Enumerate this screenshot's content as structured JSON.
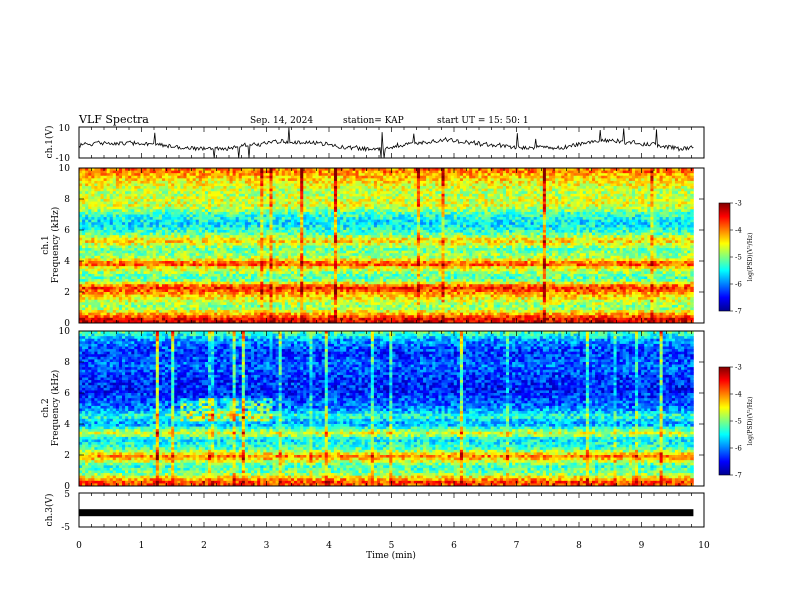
{
  "header": {
    "title": "VLF Spectra",
    "date": "Sep. 14, 2024",
    "station": "station= KAP",
    "start": "start  UT =   15: 50: 1"
  },
  "chart_data": [
    {
      "type": "line",
      "name": "ch1-waveform",
      "ylabel": "ch.1(V)",
      "ylim": [
        -10,
        10
      ],
      "y_ticks": [
        "10",
        "-10"
      ],
      "x_range_min": [
        0,
        9.83
      ],
      "approx_baseline_v": -1.5
    },
    {
      "type": "heatmap",
      "name": "ch1-spectrogram",
      "ylabel": "ch.1\nFrequency  (kHz)",
      "ylim": [
        0,
        10
      ],
      "y_ticks": [
        "0",
        "2",
        "4",
        "6",
        "8",
        "10"
      ],
      "colorbar": {
        "label": "log(PSD)(V²/Hz)",
        "ticks": [
          "-3",
          "-4",
          "-5",
          "-6",
          "-7"
        ],
        "range": [
          -7,
          -3
        ]
      },
      "band_profile_khz_logpsd": [
        [
          0.2,
          -3.4
        ],
        [
          0.6,
          -4.2
        ],
        [
          1.0,
          -5.0
        ],
        [
          1.5,
          -4.6
        ],
        [
          2.3,
          -3.6
        ],
        [
          2.8,
          -5.2
        ],
        [
          3.2,
          -5.0
        ],
        [
          3.6,
          -4.4
        ],
        [
          3.8,
          -3.7
        ],
        [
          4.2,
          -4.8
        ],
        [
          4.8,
          -5.1
        ],
        [
          5.3,
          -4.3
        ],
        [
          5.8,
          -5.2
        ],
        [
          6.4,
          -5.6
        ],
        [
          7.0,
          -5.3
        ],
        [
          7.6,
          -4.6
        ],
        [
          8.4,
          -4.8
        ],
        [
          9.2,
          -4.4
        ],
        [
          9.8,
          -4.0
        ]
      ]
    },
    {
      "type": "heatmap",
      "name": "ch2-spectrogram",
      "ylabel": "ch.2\nFrequency  (kHz)",
      "ylim": [
        0,
        10
      ],
      "y_ticks": [
        "0",
        "2",
        "4",
        "6",
        "8",
        "10"
      ],
      "colorbar": {
        "label": "log(PSD)(V²/Hz)",
        "ticks": [
          "-3",
          "-4",
          "-5",
          "-6",
          "-7"
        ],
        "range": [
          -7,
          -3
        ]
      },
      "band_profile_khz_logpsd": [
        [
          0.3,
          -3.8
        ],
        [
          0.8,
          -5.0
        ],
        [
          1.3,
          -5.3
        ],
        [
          1.9,
          -4.0
        ],
        [
          2.4,
          -5.2
        ],
        [
          3.0,
          -5.6
        ],
        [
          3.4,
          -4.6
        ],
        [
          4.0,
          -5.9
        ],
        [
          4.5,
          -5.3
        ],
        [
          5.0,
          -6.0
        ],
        [
          5.6,
          -6.2
        ],
        [
          6.2,
          -6.4
        ],
        [
          7.0,
          -6.3
        ],
        [
          7.8,
          -6.1
        ],
        [
          8.6,
          -6.3
        ],
        [
          9.4,
          -5.9
        ],
        [
          9.9,
          -5.2
        ]
      ]
    },
    {
      "type": "line",
      "name": "ch3-signal",
      "ylabel": "ch.3(V)",
      "ylim": [
        -5,
        5
      ],
      "y_ticks": [
        "5",
        "0",
        "-5"
      ],
      "approx_level_v": -0.8,
      "x_range_min": [
        0,
        9.83
      ]
    }
  ],
  "xaxis": {
    "label": "Time  (min)",
    "ticks": [
      "0",
      "1",
      "2",
      "3",
      "4",
      "5",
      "6",
      "7",
      "8",
      "9",
      "10"
    ],
    "range": [
      0,
      10
    ]
  },
  "colors": {
    "jet_low": "#00008f",
    "jet_high": "#800000",
    "trace": "#000000"
  }
}
